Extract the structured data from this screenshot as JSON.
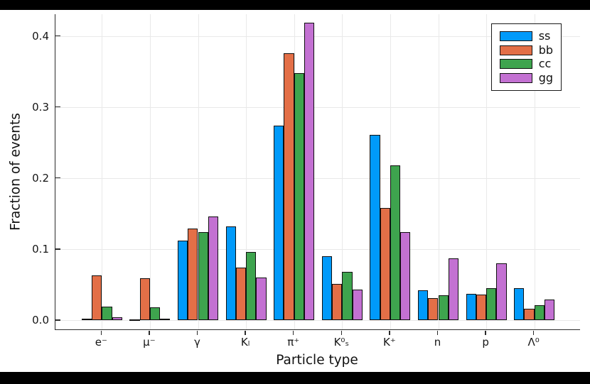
{
  "canvas": {
    "letterbox_color": "#000000",
    "background_color": "#ffffff"
  },
  "chart_data": {
    "type": "bar",
    "title": "",
    "xlabel": "Particle type",
    "ylabel": "Fraction of events",
    "categories": [
      "e⁻",
      "μ⁻",
      "γ",
      "Kₗ",
      "π⁺",
      "K⁰ₛ",
      "K⁺",
      "n",
      "p",
      "Λ⁰"
    ],
    "series": [
      {
        "name": "ss",
        "color": "#009AFA",
        "values": [
          0.002,
          0.001,
          0.112,
          0.132,
          0.274,
          0.09,
          0.261,
          0.042,
          0.037,
          0.045
        ]
      },
      {
        "name": "bb",
        "color": "#E36F47",
        "values": [
          0.063,
          0.059,
          0.129,
          0.074,
          0.376,
          0.051,
          0.158,
          0.031,
          0.036,
          0.016
        ]
      },
      {
        "name": "cc",
        "color": "#3EA44E",
        "values": [
          0.019,
          0.018,
          0.124,
          0.096,
          0.348,
          0.068,
          0.218,
          0.035,
          0.045,
          0.021
        ]
      },
      {
        "name": "gg",
        "color": "#C371D2",
        "values": [
          0.004,
          0.002,
          0.146,
          0.06,
          0.419,
          0.043,
          0.124,
          0.087,
          0.08,
          0.029
        ]
      }
    ],
    "ylim": [
      -0.0132,
      0.4305
    ],
    "yticks": [
      0,
      0.1,
      0.2,
      0.3,
      0.4
    ],
    "ytick_labels": [
      "0.0",
      "0.1",
      "0.2",
      "0.3",
      "0.4"
    ],
    "grid": true,
    "legend_position": "top-right",
    "axis_color": "#2b2b2b",
    "grid_color": "#e9e9e9",
    "bar_outline_color": "#101010"
  }
}
